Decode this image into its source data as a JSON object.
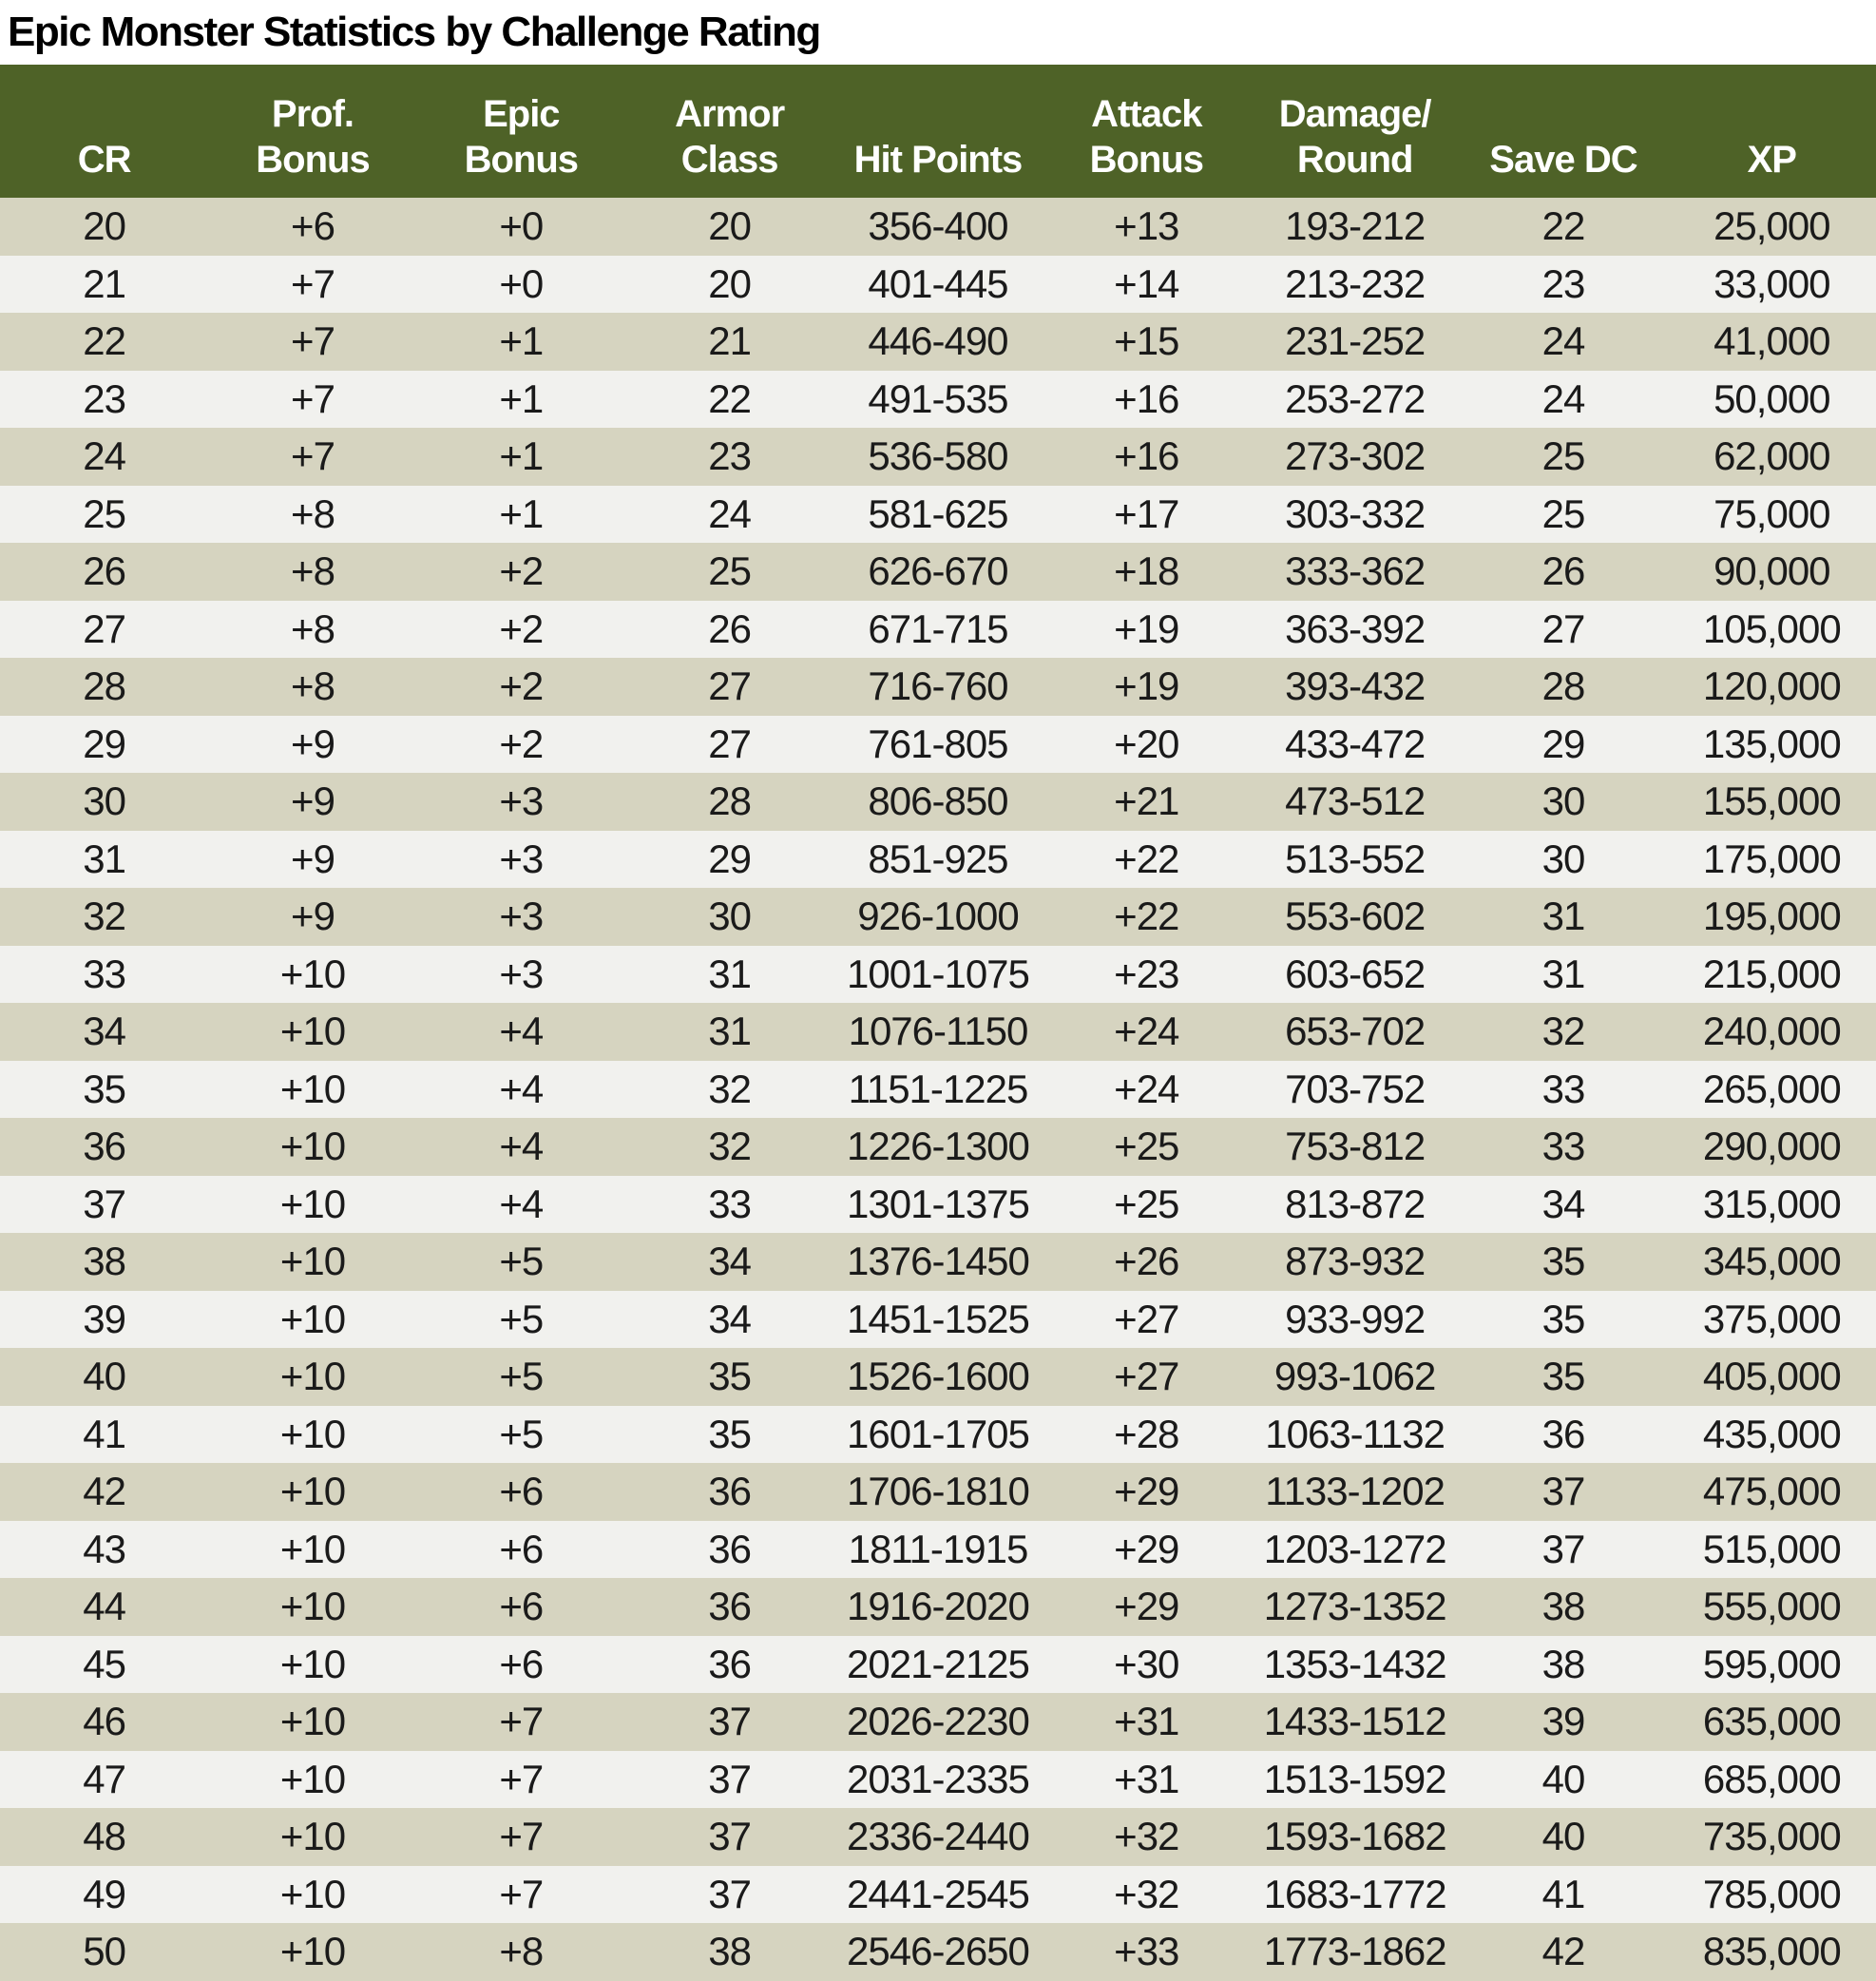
{
  "title": "Epic Monster Statistics by Challenge Rating",
  "colors": {
    "header_bg": "#4e6227",
    "header_text": "#ffffff",
    "row_stripe_tan": "#d6d4c0",
    "row_stripe_light": "#f1f1ee",
    "title_color": "#000000",
    "cell_text": "#1a1a1a",
    "page_bg": "#ffffff"
  },
  "chart_data": {
    "type": "table",
    "title": "Epic Monster Statistics by Challenge Rating",
    "columns": [
      "CR",
      "Prof. Bonus",
      "Epic Bonus",
      "Armor Class",
      "Hit Points",
      "Attack Bonus",
      "Damage/Round",
      "Save DC",
      "XP"
    ],
    "column_keys": [
      "cr",
      "prof-bonus",
      "epic-bonus",
      "armor-class",
      "hit-points",
      "attack-bonus",
      "damage-per-round",
      "save-dc",
      "xp"
    ],
    "column_header_lines": [
      [
        "CR"
      ],
      [
        "Prof.",
        "Bonus"
      ],
      [
        "Epic",
        "Bonus"
      ],
      [
        "Armor",
        "Class"
      ],
      [
        "Hit Points"
      ],
      [
        "Attack",
        "Bonus"
      ],
      [
        "Damage/",
        "Round"
      ],
      [
        "Save DC"
      ],
      [
        "XP"
      ]
    ],
    "rows": [
      [
        "20",
        "+6",
        "+0",
        "20",
        "356-400",
        "+13",
        "193-212",
        "22",
        "25,000"
      ],
      [
        "21",
        "+7",
        "+0",
        "20",
        "401-445",
        "+14",
        "213-232",
        "23",
        "33,000"
      ],
      [
        "22",
        "+7",
        "+1",
        "21",
        "446-490",
        "+15",
        "231-252",
        "24",
        "41,000"
      ],
      [
        "23",
        "+7",
        "+1",
        "22",
        "491-535",
        "+16",
        "253-272",
        "24",
        "50,000"
      ],
      [
        "24",
        "+7",
        "+1",
        "23",
        "536-580",
        "+16",
        "273-302",
        "25",
        "62,000"
      ],
      [
        "25",
        "+8",
        "+1",
        "24",
        "581-625",
        "+17",
        "303-332",
        "25",
        "75,000"
      ],
      [
        "26",
        "+8",
        "+2",
        "25",
        "626-670",
        "+18",
        "333-362",
        "26",
        "90,000"
      ],
      [
        "27",
        "+8",
        "+2",
        "26",
        "671-715",
        "+19",
        "363-392",
        "27",
        "105,000"
      ],
      [
        "28",
        "+8",
        "+2",
        "27",
        "716-760",
        "+19",
        "393-432",
        "28",
        "120,000"
      ],
      [
        "29",
        "+9",
        "+2",
        "27",
        "761-805",
        "+20",
        "433-472",
        "29",
        "135,000"
      ],
      [
        "30",
        "+9",
        "+3",
        "28",
        "806-850",
        "+21",
        "473-512",
        "30",
        "155,000"
      ],
      [
        "31",
        "+9",
        "+3",
        "29",
        "851-925",
        "+22",
        "513-552",
        "30",
        "175,000"
      ],
      [
        "32",
        "+9",
        "+3",
        "30",
        "926-1000",
        "+22",
        "553-602",
        "31",
        "195,000"
      ],
      [
        "33",
        "+10",
        "+3",
        "31",
        "1001-1075",
        "+23",
        "603-652",
        "31",
        "215,000"
      ],
      [
        "34",
        "+10",
        "+4",
        "31",
        "1076-1150",
        "+24",
        "653-702",
        "32",
        "240,000"
      ],
      [
        "35",
        "+10",
        "+4",
        "32",
        "1151-1225",
        "+24",
        "703-752",
        "33",
        "265,000"
      ],
      [
        "36",
        "+10",
        "+4",
        "32",
        "1226-1300",
        "+25",
        "753-812",
        "33",
        "290,000"
      ],
      [
        "37",
        "+10",
        "+4",
        "33",
        "1301-1375",
        "+25",
        "813-872",
        "34",
        "315,000"
      ],
      [
        "38",
        "+10",
        "+5",
        "34",
        "1376-1450",
        "+26",
        "873-932",
        "35",
        "345,000"
      ],
      [
        "39",
        "+10",
        "+5",
        "34",
        "1451-1525",
        "+27",
        "933-992",
        "35",
        "375,000"
      ],
      [
        "40",
        "+10",
        "+5",
        "35",
        "1526-1600",
        "+27",
        "993-1062",
        "35",
        "405,000"
      ],
      [
        "41",
        "+10",
        "+5",
        "35",
        "1601-1705",
        "+28",
        "1063-1132",
        "36",
        "435,000"
      ],
      [
        "42",
        "+10",
        "+6",
        "36",
        "1706-1810",
        "+29",
        "1133-1202",
        "37",
        "475,000"
      ],
      [
        "43",
        "+10",
        "+6",
        "36",
        "1811-1915",
        "+29",
        "1203-1272",
        "37",
        "515,000"
      ],
      [
        "44",
        "+10",
        "+6",
        "36",
        "1916-2020",
        "+29",
        "1273-1352",
        "38",
        "555,000"
      ],
      [
        "45",
        "+10",
        "+6",
        "36",
        "2021-2125",
        "+30",
        "1353-1432",
        "38",
        "595,000"
      ],
      [
        "46",
        "+10",
        "+7",
        "37",
        "2026-2230",
        "+31",
        "1433-1512",
        "39",
        "635,000"
      ],
      [
        "47",
        "+10",
        "+7",
        "37",
        "2031-2335",
        "+31",
        "1513-1592",
        "40",
        "685,000"
      ],
      [
        "48",
        "+10",
        "+7",
        "37",
        "2336-2440",
        "+32",
        "1593-1682",
        "40",
        "735,000"
      ],
      [
        "49",
        "+10",
        "+7",
        "37",
        "2441-2545",
        "+32",
        "1683-1772",
        "41",
        "785,000"
      ],
      [
        "50",
        "+10",
        "+8",
        "38",
        "2546-2650",
        "+33",
        "1773-1862",
        "42",
        "835,000"
      ]
    ]
  }
}
